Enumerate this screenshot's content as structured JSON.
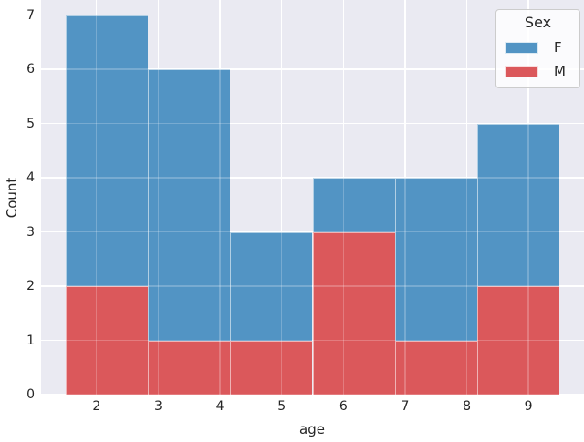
{
  "chart_data": {
    "type": "bar",
    "subtype": "stacked-histogram",
    "title": "",
    "xlabel": "age",
    "ylabel": "Count",
    "bin_edges": [
      1.5,
      2.8333,
      4.1667,
      5.5,
      6.8333,
      8.1667,
      9.5
    ],
    "series": [
      {
        "name": "M",
        "color": "#db585b",
        "values": [
          2,
          1,
          1,
          3,
          1,
          2
        ]
      },
      {
        "name": "F",
        "color": "#5294c4",
        "values": [
          5,
          5,
          2,
          1,
          3,
          3
        ]
      }
    ],
    "stack_order_bottom_to_top": [
      "M",
      "F"
    ],
    "bin_totals": [
      7,
      6,
      3,
      4,
      4,
      5
    ],
    "x_ticks": [
      2,
      3,
      4,
      5,
      6,
      7,
      8,
      9
    ],
    "y_ticks": [
      0,
      1,
      2,
      3,
      4,
      5,
      6,
      7
    ],
    "xlim": [
      1.1,
      9.9
    ],
    "ylim": [
      0,
      7.28
    ],
    "grid": true,
    "legend": {
      "title": "Sex",
      "position": "upper-right",
      "entries": [
        {
          "label": "F",
          "color": "#5294c4"
        },
        {
          "label": "M",
          "color": "#db585b"
        }
      ]
    },
    "style": {
      "plot_background": "#eaeaf2",
      "figure_background": "#ffffff",
      "grid_color": "#ffffff",
      "text_color": "#262626",
      "legend_border": "#cccccc"
    }
  }
}
